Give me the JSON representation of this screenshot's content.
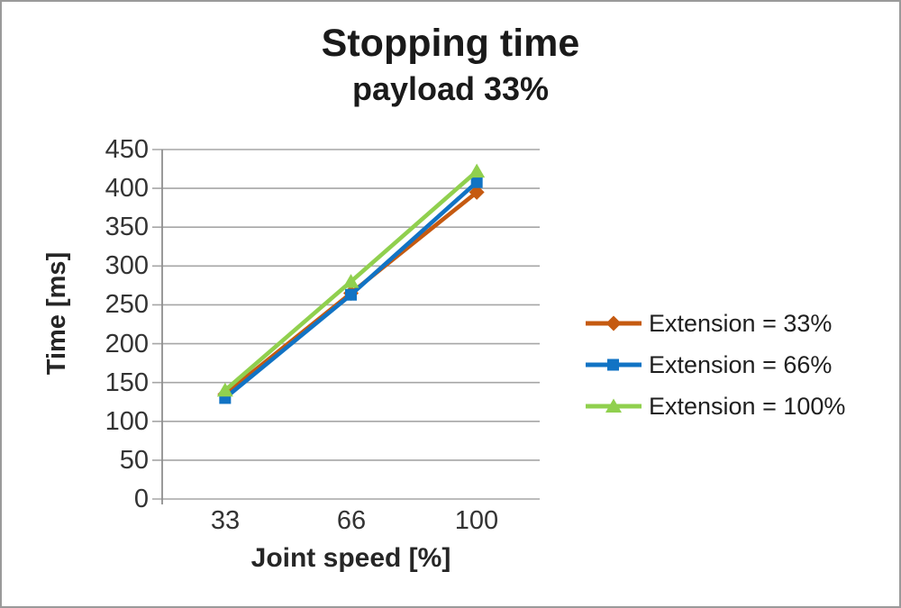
{
  "frame": {
    "background": "#ffffff",
    "border_color": "#9a9a9a"
  },
  "colors": {
    "gridline": "#a6a6a6",
    "axis_line": "#8f8f8f",
    "tick_text": "#333333",
    "title_text": "#1a1a1a"
  },
  "chart_data": {
    "type": "line",
    "title": "Stopping time",
    "subtitle": "payload 33%",
    "xlabel": "Joint speed [%]",
    "ylabel": "Time [ms]",
    "categories": [
      "33",
      "66",
      "100"
    ],
    "series": [
      {
        "name": "Extension = 33%",
        "color": "#c55a11",
        "marker": "diamond",
        "values": [
          135,
          265,
          395
        ]
      },
      {
        "name": "Extension = 66%",
        "color": "#1173c4",
        "marker": "square",
        "values": [
          130,
          263,
          408
        ]
      },
      {
        "name": "Extension = 100%",
        "color": "#90d04e",
        "marker": "triangle",
        "values": [
          140,
          280,
          422
        ]
      }
    ],
    "ylim": [
      0,
      450
    ],
    "yticks": [
      0,
      50,
      100,
      150,
      200,
      250,
      300,
      350,
      400,
      450
    ],
    "grid": true,
    "legend_position": "right"
  }
}
